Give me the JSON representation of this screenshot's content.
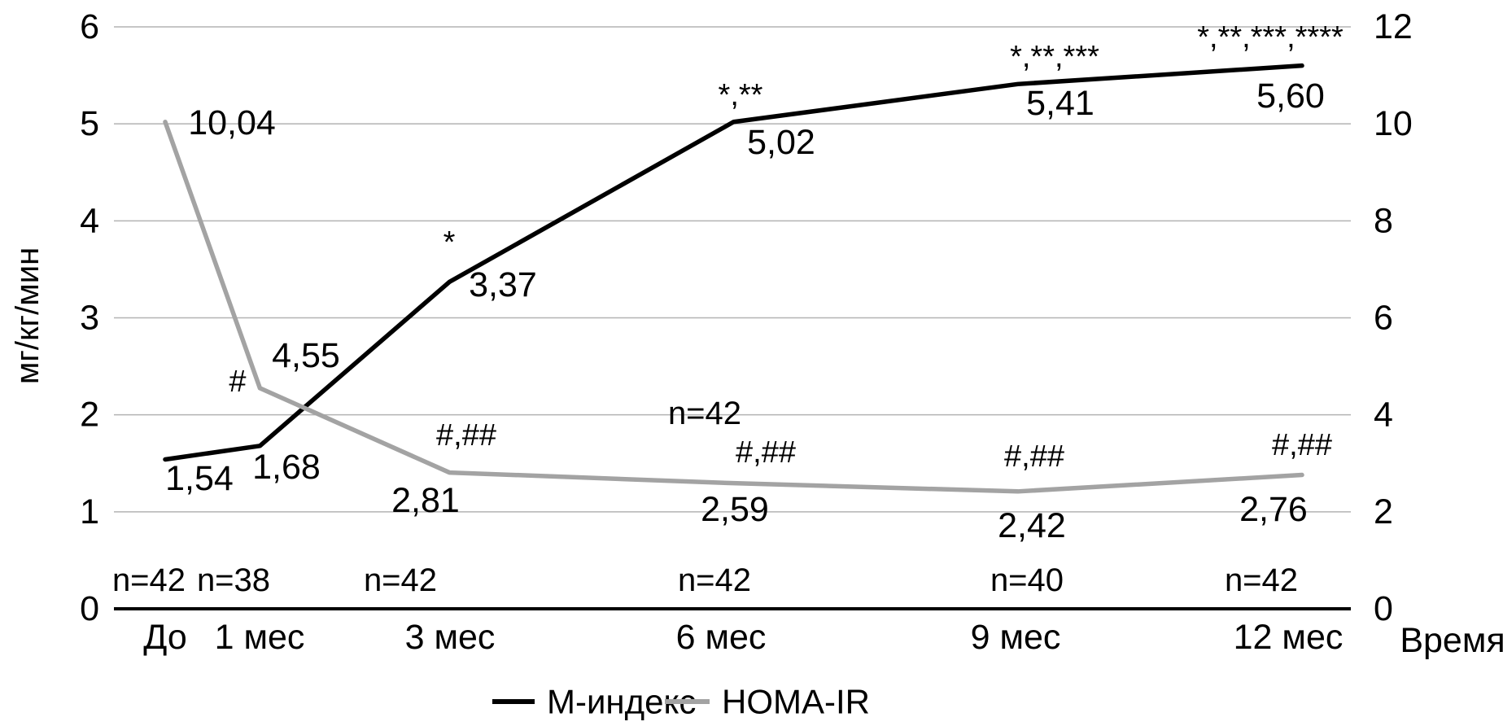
{
  "chart_data": {
    "type": "line",
    "x": {
      "label": "Время",
      "tick_labels": [
        "До",
        "1 мес",
        "3 мес",
        "6 мес",
        "9 мес",
        "12 мес"
      ],
      "months": [
        0,
        1,
        3,
        6,
        9,
        12
      ]
    },
    "y_left": {
      "label": "мг/кг/мин",
      "range": [
        0,
        6
      ],
      "ticks": [
        0,
        1,
        2,
        3,
        4,
        5,
        6
      ]
    },
    "y_right": {
      "range": [
        0,
        12
      ],
      "ticks": [
        0,
        2,
        4,
        6,
        8,
        10,
        12
      ]
    },
    "grid": true,
    "legend_position": "bottom",
    "series": [
      {
        "name": "М-индекс",
        "axis": "left",
        "color": "#000000",
        "values": [
          1.54,
          1.68,
          3.37,
          5.02,
          5.41,
          5.6
        ],
        "labels": [
          "1,54",
          "1,68",
          "3,37",
          "5,02",
          "5,41",
          "5,60"
        ],
        "annotations": [
          "",
          "",
          "*",
          "*,**",
          "*,**,***",
          "*,**,***,****"
        ]
      },
      {
        "name": "HOMA-IR",
        "axis": "right",
        "color": "#a3a3a3",
        "values": [
          10.04,
          4.55,
          2.81,
          2.59,
          2.42,
          2.76
        ],
        "labels": [
          "10,04",
          "4,55",
          "2,81",
          "2,59",
          "2,42",
          "2,76"
        ],
        "annotations": [
          "",
          "#",
          "#,##",
          "#,##",
          "#,##",
          "#,##"
        ]
      }
    ],
    "n_labels": [
      "n=42",
      "n=38",
      "n=42",
      "n=42",
      "n=40",
      "n=42"
    ],
    "mid_annotation": "n=42",
    "gridline_color": "#b3b3b3",
    "axis_color": "#000000"
  }
}
